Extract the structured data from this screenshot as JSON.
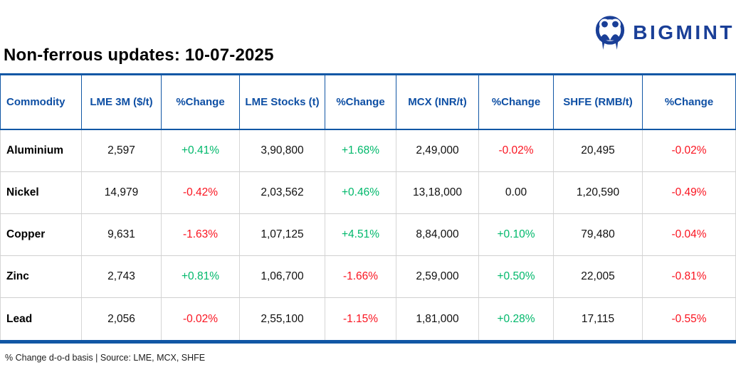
{
  "title": "Non-ferrous updates: 10-07-2025",
  "logo": {
    "brand": "BIGMINT",
    "icon": "bigmint-people-icon"
  },
  "colors": {
    "brand_blue": "#1a3f97",
    "header_blue": "#0e4fa4",
    "border_blue": "#1157a5",
    "positive_green": "#00b86b",
    "negative_red": "#fa1420",
    "neutral_black": "#101010"
  },
  "table": {
    "columns": [
      "Commodity",
      "LME 3M ($/t)",
      "%Change",
      "LME Stocks (t)",
      "%Change",
      "MCX (INR/t)",
      "%Change",
      "SHFE (RMB/t)",
      "%Change"
    ],
    "change_column_indexes": [
      2,
      4,
      6,
      8
    ],
    "rows": [
      [
        "Aluminium",
        "2,597",
        "+0.41%",
        "3,90,800",
        "+1.68%",
        "2,49,000",
        "-0.02%",
        "20,495",
        "-0.02%"
      ],
      [
        "Nickel",
        "14,979",
        "-0.42%",
        "2,03,562",
        "+0.46%",
        "13,18,000",
        "0.00",
        "1,20,590",
        "-0.49%"
      ],
      [
        "Copper",
        "9,631",
        "-1.63%",
        "1,07,125",
        "+4.51%",
        "8,84,000",
        "+0.10%",
        "79,480",
        "-0.04%"
      ],
      [
        "Zinc",
        "2,743",
        "+0.81%",
        "1,06,700",
        "-1.66%",
        "2,59,000",
        "+0.50%",
        "22,005",
        "-0.81%"
      ],
      [
        "Lead",
        "2,056",
        "-0.02%",
        "2,55,100",
        "-1.15%",
        "1,81,000",
        "+0.28%",
        "17,115",
        "-0.55%"
      ]
    ]
  },
  "footer": {
    "note": "% Change d-o-d basis | Source: LME, MCX, SHFE"
  }
}
